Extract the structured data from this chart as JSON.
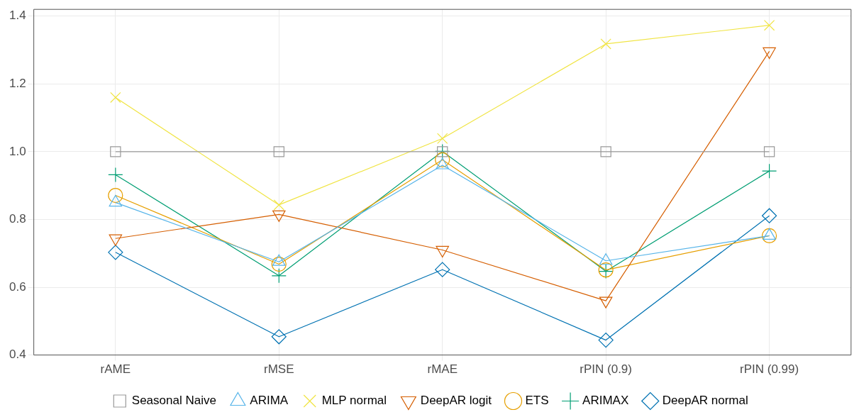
{
  "chart_data": {
    "type": "line",
    "categories": [
      "rAME",
      "rMSE",
      "rMAE",
      "rPIN (0.9)",
      "rPIN (0.99)"
    ],
    "ylim": [
      0.4,
      1.42
    ],
    "yticks": [
      0.4,
      0.6,
      0.8,
      {
        "value": 1,
        "label": "1.0"
      },
      1.2,
      1.4
    ],
    "grid": true,
    "legend": "bottom",
    "series": [
      {
        "name": "Seasonal Naive",
        "color": "#999999",
        "marker": "square",
        "values": [
          1.0,
          1.0,
          1.0,
          1.0,
          1.0
        ]
      },
      {
        "name": "ARIMA",
        "color": "#56b4e9",
        "marker": "triangle",
        "values": [
          0.85,
          0.675,
          0.96,
          0.678,
          0.752
        ]
      },
      {
        "name": "MLP normal",
        "color": "#f0e442",
        "marker": "cross",
        "values": [
          1.16,
          0.843,
          1.039,
          1.318,
          1.373
        ]
      },
      {
        "name": "DeepAR logit",
        "color": "#d55e00",
        "marker": "triangle-down",
        "values": [
          0.744,
          0.815,
          0.71,
          0.56,
          1.296
        ]
      },
      {
        "name": "ETS",
        "color": "#e69f00",
        "marker": "circle",
        "values": [
          0.871,
          0.668,
          0.976,
          0.651,
          0.752
        ]
      },
      {
        "name": "ARIMAX",
        "color": "#009e73",
        "marker": "plus",
        "values": [
          0.932,
          0.634,
          1.001,
          0.647,
          0.943
        ]
      },
      {
        "name": "DeepAR normal",
        "color": "#0072b2",
        "marker": "diamond",
        "values": [
          0.703,
          0.454,
          0.652,
          0.444,
          0.811
        ]
      }
    ]
  }
}
